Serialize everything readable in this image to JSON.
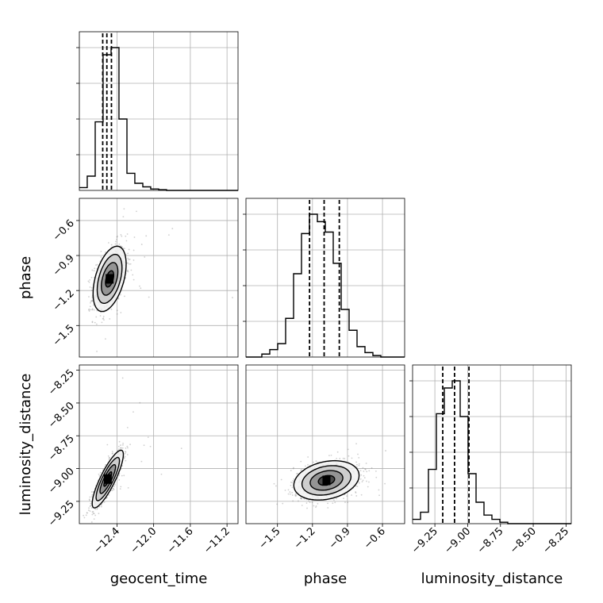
{
  "chart_data": {
    "type": "corner",
    "parameters": [
      "geocent_time",
      "phase",
      "luminosity_distance"
    ],
    "axis_labels": {
      "geocent_time": "geocent_time",
      "phase": "phase",
      "luminosity_distance": "luminosity_distance"
    },
    "ranges": {
      "geocent_time": [
        -12.81,
        -11.08
      ],
      "phase": [
        -1.77,
        -0.41
      ],
      "luminosity_distance": [
        -9.42,
        -8.21
      ]
    },
    "ticks": {
      "geocent_time": [
        {
          "v": -12.4,
          "label": "−12.4"
        },
        {
          "v": -12.0,
          "label": "−12.0"
        },
        {
          "v": -11.6,
          "label": "−11.6"
        },
        {
          "v": -11.2,
          "label": "−11.2"
        }
      ],
      "phase": [
        {
          "v": -1.5,
          "label": "−1.5"
        },
        {
          "v": -1.2,
          "label": "−1.2"
        },
        {
          "v": -0.9,
          "label": "−0.9"
        },
        {
          "v": -0.6,
          "label": "−0.6"
        }
      ],
      "luminosity_distance": [
        {
          "v": -9.25,
          "label": "−9.25"
        },
        {
          "v": -9.0,
          "label": "−9.00"
        },
        {
          "v": -8.75,
          "label": "−8.75"
        },
        {
          "v": -8.5,
          "label": "−8.50"
        },
        {
          "v": -8.25,
          "label": "−8.25"
        }
      ]
    },
    "grid": true,
    "marginals": {
      "geocent_time": {
        "bins": [
          -12.81,
          -12.724,
          -12.637,
          -12.551,
          -12.464,
          -12.378,
          -12.291,
          -12.205,
          -12.118,
          -12.032,
          -11.945,
          -11.859,
          -11.772,
          -11.686,
          -11.599,
          -11.513,
          -11.426,
          -11.34,
          -11.253,
          -11.167,
          -11.08
        ],
        "counts": [
          0.02,
          0.1,
          0.48,
          0.95,
          1.0,
          0.5,
          0.12,
          0.05,
          0.025,
          0.01,
          0.005,
          0,
          0,
          0,
          0,
          0,
          0,
          0,
          0,
          0
        ],
        "quantiles": [
          -12.555,
          -12.51,
          -12.46
        ]
      },
      "phase": {
        "bins": [
          -1.77,
          -1.702,
          -1.634,
          -1.566,
          -1.498,
          -1.43,
          -1.362,
          -1.294,
          -1.226,
          -1.158,
          -1.09,
          -1.022,
          -0.954,
          -0.886,
          -0.818,
          -0.75,
          -0.682,
          -0.614,
          -0.546,
          -0.478,
          -0.41
        ],
        "counts": [
          0,
          0,
          0.02,
          0.05,
          0.09,
          0.26,
          0.56,
          0.83,
          0.96,
          0.91,
          0.84,
          0.63,
          0.32,
          0.18,
          0.07,
          0.03,
          0.01,
          0,
          0,
          0
        ],
        "quantiles": [
          -1.225,
          -1.1,
          -0.97
        ]
      },
      "luminosity_distance": {
        "bins": [
          -9.42,
          -9.3595,
          -9.299,
          -9.2385,
          -9.178,
          -9.1175,
          -9.057,
          -8.9965,
          -8.936,
          -8.8755,
          -8.815,
          -8.7545,
          -8.694,
          -8.6335,
          -8.573,
          -8.5125,
          -8.452,
          -8.3915,
          -8.331,
          -8.2705,
          -8.21
        ],
        "counts": [
          0.03,
          0.08,
          0.38,
          0.77,
          0.95,
          1.0,
          0.75,
          0.35,
          0.15,
          0.06,
          0.03,
          0.01,
          0,
          0,
          0,
          0,
          0,
          0,
          0,
          0
        ],
        "quantiles": [
          -9.19,
          -9.1,
          -8.99
        ]
      }
    },
    "joint": [
      {
        "x": "geocent_time",
        "y": "phase",
        "mean": [
          -12.48,
          -1.1
        ],
        "sd": [
          0.09,
          0.14
        ],
        "rho": 0.45,
        "contour_levels": [
          0.5,
          1.0,
          1.5,
          2.0
        ]
      },
      {
        "x": "geocent_time",
        "y": "luminosity_distance",
        "mean": [
          -12.5,
          -9.08
        ],
        "sd": [
          0.085,
          0.11
        ],
        "rho": 0.85,
        "contour_levels": [
          0.5,
          1.0,
          1.5,
          2.0
        ]
      },
      {
        "x": "phase",
        "y": "luminosity_distance",
        "mean": [
          -1.08,
          -9.09
        ],
        "sd": [
          0.14,
          0.075
        ],
        "rho": 0.25,
        "contour_levels": [
          0.5,
          1.0,
          1.5,
          2.0
        ]
      }
    ],
    "colors": {
      "hist": "#000000",
      "grid": "#b0b0b0",
      "axes": "#000000",
      "scatter": "#777777"
    }
  }
}
